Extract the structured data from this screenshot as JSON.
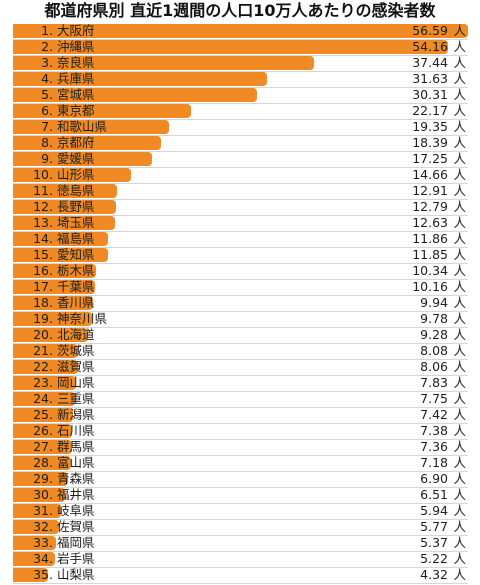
{
  "chart_data": {
    "type": "bar",
    "orientation": "horizontal",
    "title": "都道府県別 直近1週間の人口10万人あたりの感染者数",
    "unit": "人",
    "bar_color": "#f08a24",
    "categories": [
      "大阪府",
      "沖縄県",
      "奈良県",
      "兵庫県",
      "宮城県",
      "東京都",
      "和歌山県",
      "京都府",
      "愛媛県",
      "山形県",
      "徳島県",
      "長野県",
      "埼玉県",
      "福島県",
      "愛知県",
      "栃木県",
      "千葉県",
      "香川県",
      "神奈川県",
      "北海道",
      "茨城県",
      "滋賀県",
      "岡山県",
      "三重県",
      "新潟県",
      "石川県",
      "群馬県",
      "富山県",
      "青森県",
      "福井県",
      "岐阜県",
      "佐賀県",
      "福岡県",
      "岩手県",
      "山梨県"
    ],
    "ranks": [
      "1.",
      "2.",
      "3.",
      "4.",
      "5.",
      "6.",
      "7.",
      "8.",
      "9.",
      "10.",
      "11.",
      "12.",
      "13.",
      "14.",
      "15.",
      "16.",
      "17.",
      "18.",
      "19.",
      "20.",
      "21.",
      "22.",
      "23.",
      "24.",
      "25.",
      "26.",
      "27.",
      "28.",
      "29.",
      "30.",
      "31.",
      "32.",
      "33.",
      "34.",
      "35."
    ],
    "values": [
      56.59,
      54.16,
      37.44,
      31.63,
      30.31,
      22.17,
      19.35,
      18.39,
      17.25,
      14.66,
      12.91,
      12.79,
      12.63,
      11.86,
      11.85,
      10.34,
      10.16,
      9.94,
      9.78,
      9.28,
      8.08,
      8.06,
      7.83,
      7.75,
      7.42,
      7.38,
      7.36,
      7.18,
      6.9,
      6.51,
      5.94,
      5.77,
      5.37,
      5.22,
      4.32
    ],
    "labels": [
      "56.59",
      "54.16",
      "37.44",
      "31.63",
      "30.31",
      "22.17",
      "19.35",
      "18.39",
      "17.25",
      "14.66",
      "12.91",
      "12.79",
      "12.63",
      "11.86",
      "11.85",
      "10.34",
      "10.16",
      "9.94",
      "9.78",
      "9.28",
      "8.08",
      "8.06",
      "7.83",
      "7.75",
      "7.42",
      "7.38",
      "7.36",
      "7.18",
      "6.90",
      "6.51",
      "5.94",
      "5.77",
      "5.37",
      "5.22",
      "4.32"
    ],
    "xlim": [
      0,
      56.59
    ]
  }
}
